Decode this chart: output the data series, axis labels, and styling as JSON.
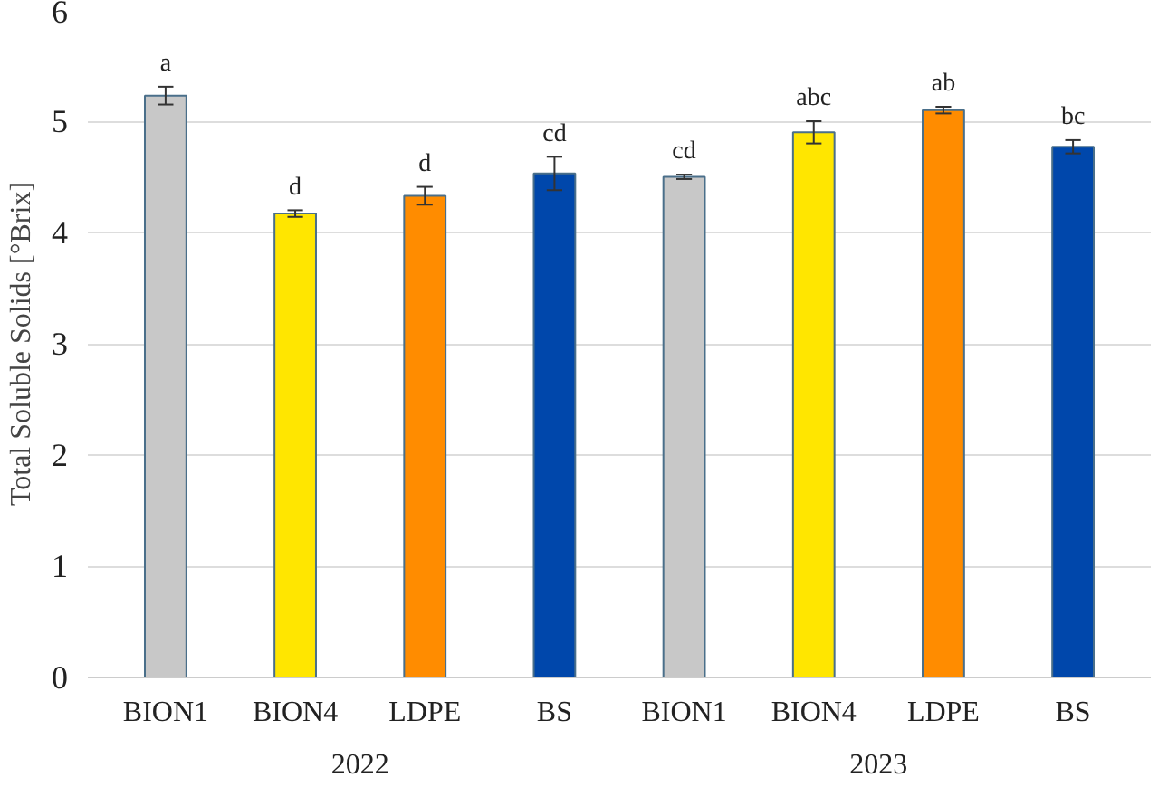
{
  "chart_data": {
    "type": "bar",
    "ylabel": "Total Soluble Solids [°Brix]",
    "categories": [
      "BION1",
      "BION4",
      "LDPE",
      "BS",
      "BION1",
      "BION4",
      "LDPE",
      "BS"
    ],
    "values": [
      5.23,
      4.17,
      4.33,
      4.53,
      4.5,
      4.9,
      5.1,
      4.77
    ],
    "errors": [
      0.08,
      0.03,
      0.08,
      0.15,
      0.02,
      0.1,
      0.03,
      0.06
    ],
    "value_labels": [
      "a",
      "d",
      "d",
      "cd",
      "cd",
      "abc",
      "ab",
      "bc"
    ],
    "colors": [
      "#c8c8c8",
      "#ffe600",
      "#ff8c00",
      "#0047ab",
      "#c8c8c8",
      "#ffe600",
      "#ff8c00",
      "#0047ab"
    ],
    "annotations": [
      "2022",
      "2023"
    ],
    "ylim": [
      0,
      6
    ],
    "yticks": [
      0,
      1,
      2,
      3,
      4,
      5,
      6
    ],
    "grid": "y"
  }
}
